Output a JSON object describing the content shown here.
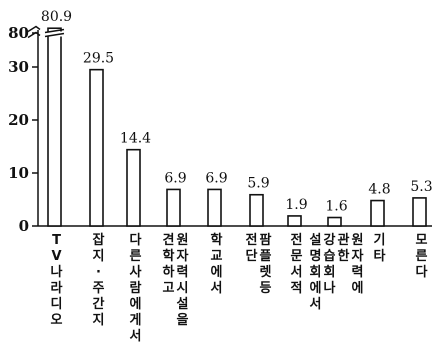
{
  "chart_data": {
    "type": "bar",
    "title": "",
    "xlabel": "",
    "ylabel": "",
    "ylim": [
      0,
      80
    ],
    "axis_break": [
      35,
      75
    ],
    "y_ticks": [
      "0",
      "10",
      "20",
      "30",
      "80"
    ],
    "grid": false,
    "categories": [
      "TV나라디오",
      "잡지·주간지",
      "다른사람에게서",
      "원자력시설을 견학하고",
      "학교에서",
      "팜플렛등 전단",
      "전문서적",
      "원자력에 관한 강습회나 설명회에서",
      "기타",
      "모른다"
    ],
    "values": [
      80.9,
      29.5,
      14.4,
      6.9,
      6.9,
      5.9,
      1.9,
      1.6,
      4.8,
      5.3
    ],
    "value_labels": [
      "80.9",
      "29.5",
      "14.4",
      "6.9",
      "6.9",
      "5.9",
      "1.9",
      "1.6",
      "4.8",
      "5.3"
    ],
    "colors": {
      "bar_fill": "#ffffff",
      "bar_stroke": "#111111",
      "axis": "#111111"
    }
  }
}
